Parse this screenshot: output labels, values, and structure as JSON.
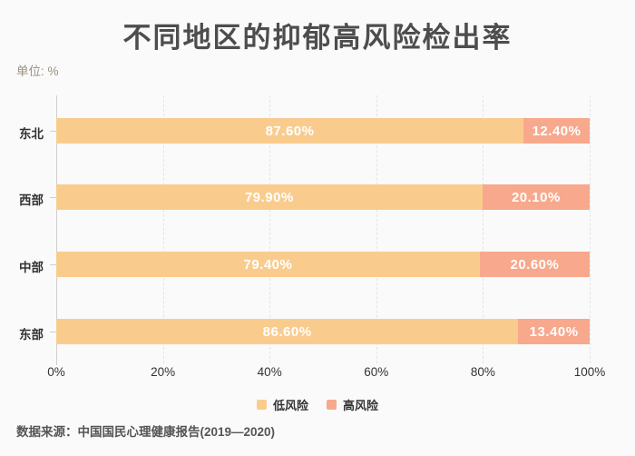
{
  "page": {
    "background": "#FAFAFA"
  },
  "header": {
    "title": "不同地区的抑郁高风险检出率",
    "unit_label": "单位: %"
  },
  "chart_data": {
    "type": "bar",
    "orientation": "horizontal",
    "stacked": true,
    "title": "不同地区的抑郁高风险检出率",
    "unit": "%",
    "categories": [
      "东北",
      "西部",
      "中部",
      "东部"
    ],
    "series": [
      {
        "name": "低风险",
        "color": "#F9CC8E",
        "values": [
          87.6,
          79.9,
          79.4,
          86.6
        ],
        "labels": [
          "87.60%",
          "79.90%",
          "79.40%",
          "86.60%"
        ]
      },
      {
        "name": "高风险",
        "color": "#F8A88C",
        "values": [
          12.4,
          20.1,
          20.6,
          13.4
        ],
        "labels": [
          "12.40%",
          "20.10%",
          "20.60%",
          "13.40%"
        ]
      }
    ],
    "x_ticks": [
      "0%",
      "20%",
      "40%",
      "60%",
      "80%",
      "100%"
    ],
    "x_tick_values": [
      0,
      20,
      40,
      60,
      80,
      100
    ],
    "xlim": [
      0,
      100
    ],
    "grid": "vertical-dashed",
    "legend_position": "bottom",
    "value_label_color": "#FFFFFF"
  },
  "footer": {
    "source": "数据来源：中国国民心理健康报告(2019—2020)"
  }
}
